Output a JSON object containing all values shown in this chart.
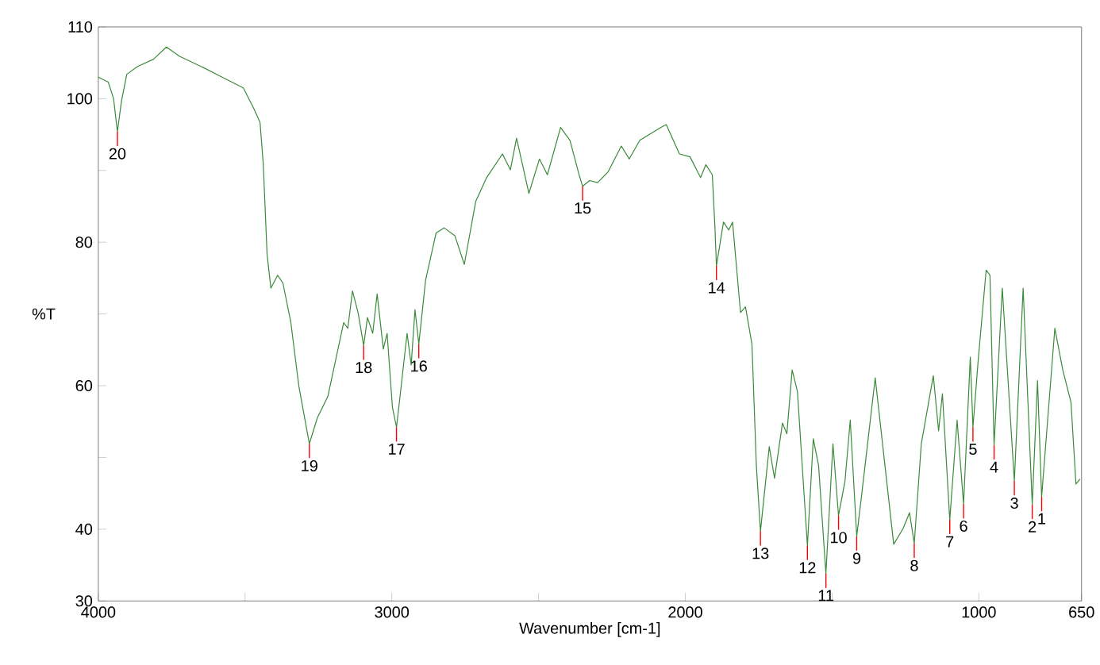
{
  "chart_data": {
    "type": "line",
    "xlabel": "Wavenumber [cm-1]",
    "ylabel": "%T",
    "xlim": [
      4000,
      650
    ],
    "ylim": [
      30,
      110
    ],
    "xticks": [
      4000,
      {
        "value": 3500,
        "label": null
      },
      3000,
      {
        "value": 2500,
        "label": null
      },
      2000,
      {
        "value": 1500,
        "label": null
      },
      1000,
      650
    ],
    "yticks": [
      30,
      40,
      {
        "value": 50,
        "label": null
      },
      60,
      {
        "value": 70,
        "label": null
      },
      80,
      {
        "value": 90,
        "label": null
      },
      100,
      110
    ],
    "color": "#3a8a3a",
    "x": [
      4000,
      3966,
      3948,
      3935,
      3921,
      3903,
      3866,
      3812,
      3768,
      3723,
      3650,
      3578,
      3506,
      3470,
      3449,
      3438,
      3425,
      3412,
      3389,
      3371,
      3344,
      3317,
      3281,
      3254,
      3218,
      3164,
      3150,
      3134,
      3115,
      3096,
      3083,
      3065,
      3050,
      3029,
      3016,
      2998,
      2984,
      2966,
      2948,
      2934,
      2921,
      2908,
      2885,
      2849,
      2822,
      2785,
      2753,
      2714,
      2677,
      2623,
      2596,
      2575,
      2533,
      2497,
      2470,
      2425,
      2393,
      2362,
      2350,
      2326,
      2299,
      2263,
      2218,
      2191,
      2155,
      2083,
      2065,
      2020,
      1984,
      1948,
      1930,
      1908,
      1899,
      1894,
      1870,
      1852,
      1839,
      1812,
      1795,
      1773,
      1758,
      1744,
      1714,
      1696,
      1669,
      1654,
      1636,
      1618,
      1584,
      1564,
      1546,
      1521,
      1497,
      1478,
      1456,
      1438,
      1416,
      1398,
      1353,
      1308,
      1290,
      1258,
      1236,
      1220,
      1196,
      1155,
      1137,
      1124,
      1099,
      1074,
      1052,
      1029,
      1020,
      1002,
      975,
      962,
      948,
      920,
      879,
      849,
      818,
      800,
      786,
      750,
      741,
      714,
      686,
      669,
      655
    ],
    "values": [
      103.0,
      102.3,
      100.0,
      95.4,
      99.7,
      103.4,
      104.5,
      105.5,
      107.2,
      105.9,
      104.5,
      103.0,
      101.5,
      98.6,
      96.7,
      90.9,
      78.3,
      73.6,
      75.4,
      74.3,
      68.8,
      60.0,
      51.9,
      55.5,
      58.5,
      68.8,
      68.0,
      73.2,
      70.2,
      65.6,
      69.5,
      67.3,
      72.8,
      65.1,
      67.3,
      57.0,
      54.2,
      60.7,
      67.3,
      62.9,
      70.6,
      65.8,
      74.7,
      81.3,
      82.0,
      80.9,
      76.9,
      85.7,
      89.0,
      92.3,
      90.1,
      94.5,
      86.8,
      91.6,
      89.4,
      96.0,
      94.2,
      89.4,
      87.8,
      88.6,
      88.3,
      89.8,
      93.4,
      91.6,
      94.2,
      96.0,
      96.4,
      92.3,
      91.9,
      89.0,
      90.8,
      89.4,
      82.0,
      76.7,
      82.8,
      81.7,
      82.8,
      70.2,
      71.0,
      65.8,
      48.9,
      39.7,
      51.5,
      47.1,
      54.8,
      53.3,
      62.2,
      59.2,
      37.7,
      52.6,
      48.9,
      33.8,
      51.9,
      41.9,
      46.7,
      55.2,
      39.0,
      45.2,
      61.1,
      44.5,
      37.9,
      40.1,
      42.3,
      38.0,
      51.9,
      61.4,
      53.7,
      58.9,
      41.3,
      55.2,
      43.5,
      64.0,
      54.2,
      63.6,
      76.1,
      75.4,
      51.7,
      73.6,
      46.7,
      73.6,
      43.4,
      60.7,
      44.5,
      63.3,
      68.0,
      62.2,
      57.7,
      46.3,
      47.0
    ],
    "annotations": [
      {
        "text": "1",
        "x": 786,
        "y": 44.5
      },
      {
        "text": "2",
        "x": 818,
        "y": 43.4
      },
      {
        "text": "3",
        "x": 879,
        "y": 46.7
      },
      {
        "text": "4",
        "x": 948,
        "y": 51.7
      },
      {
        "text": "5",
        "x": 1020,
        "y": 54.2
      },
      {
        "text": "6",
        "x": 1052,
        "y": 43.5
      },
      {
        "text": "7",
        "x": 1099,
        "y": 41.3
      },
      {
        "text": "8",
        "x": 1220,
        "y": 38.0
      },
      {
        "text": "9",
        "x": 1416,
        "y": 39.0
      },
      {
        "text": "10",
        "x": 1478,
        "y": 41.9
      },
      {
        "text": "11",
        "x": 1521,
        "y": 33.8
      },
      {
        "text": "12",
        "x": 1584,
        "y": 37.7
      },
      {
        "text": "13",
        "x": 1744,
        "y": 39.7
      },
      {
        "text": "14",
        "x": 1894,
        "y": 76.7
      },
      {
        "text": "15",
        "x": 2350,
        "y": 87.8
      },
      {
        "text": "16",
        "x": 2908,
        "y": 65.8
      },
      {
        "text": "17",
        "x": 2984,
        "y": 54.2
      },
      {
        "text": "18",
        "x": 3096,
        "y": 65.6
      },
      {
        "text": "19",
        "x": 3281,
        "y": 51.9
      },
      {
        "text": "20",
        "x": 3935,
        "y": 95.4
      }
    ]
  }
}
